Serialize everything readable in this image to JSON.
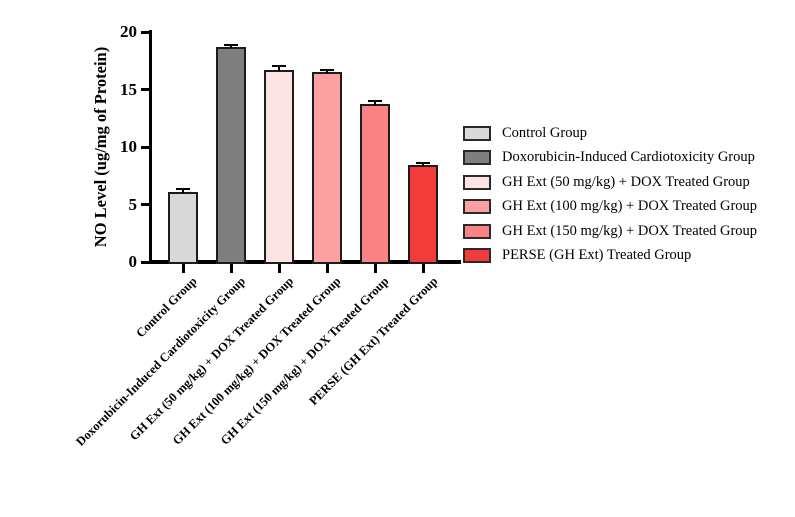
{
  "chart_data": {
    "type": "bar",
    "title": "",
    "xlabel": "",
    "ylabel": "NO Level (ug/mg of Protein)",
    "ylim": [
      0,
      20
    ],
    "yticks": [
      0,
      5,
      10,
      15,
      20
    ],
    "grid": false,
    "categories": [
      "Control Group",
      "Doxorubicin-Induced Cardiotoxicity Group",
      "GH Ext (50 mg/kg) + DOX Treated Group",
      "GH Ext (100 mg/kg) + DOX Treated Group",
      "GH Ext (150 mg/kg) + DOX Treated Group",
      "PERSE (GH Ext) Treated Group"
    ],
    "values": [
      6.1,
      18.7,
      16.7,
      16.5,
      13.7,
      8.4
    ],
    "errors": [
      0.2,
      0.12,
      0.3,
      0.15,
      0.2,
      0.1
    ],
    "bar_colors": [
      "#d9d9d9",
      "#7f7f7f",
      "#fce3e3",
      "#fca0a0",
      "#fb8282",
      "#f43b3b"
    ],
    "bar_border_color": "#1c1c1c",
    "axis_color": "#000000",
    "error_bar_color": "#000000",
    "legend": {
      "position": "right",
      "entries": [
        {
          "label": "Control Group",
          "color": "#d9d9d9"
        },
        {
          "label": "Doxorubicin-Induced Cardiotoxicity Group",
          "color": "#7f7f7f"
        },
        {
          "label": "GH Ext (50 mg/kg) + DOX Treated Group",
          "color": "#fce3e3"
        },
        {
          "label": "GH Ext (100 mg/kg) + DOX Treated Group",
          "color": "#fca0a0"
        },
        {
          "label": "GH Ext (150 mg/kg) + DOX Treated Group",
          "color": "#fb8282"
        },
        {
          "label": "PERSE (GH Ext) Treated Group",
          "color": "#f43b3b"
        }
      ]
    }
  }
}
